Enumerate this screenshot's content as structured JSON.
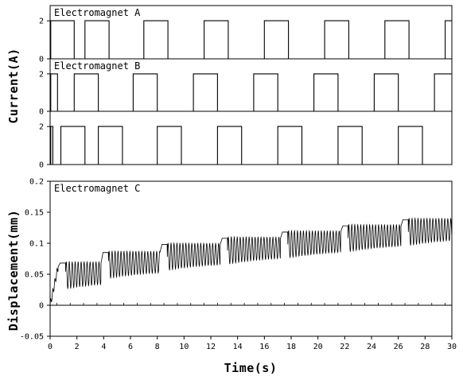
{
  "chart_data": [
    {
      "type": "line",
      "title": "Electromagnet A",
      "ylim": [
        0,
        2.8
      ],
      "yticks": [
        0,
        2
      ],
      "xlim": [
        0,
        30
      ],
      "current_high": 2,
      "pulses": [
        [
          0.05,
          1.8
        ],
        [
          2.6,
          4.4
        ],
        [
          7.0,
          8.8
        ],
        [
          11.5,
          13.3
        ],
        [
          16.0,
          17.8
        ],
        [
          20.5,
          22.3
        ],
        [
          25.0,
          26.8
        ],
        [
          29.5,
          30
        ]
      ],
      "color": "#000000"
    },
    {
      "type": "line",
      "title": "Electromagnet B",
      "ylim": [
        0,
        2.8
      ],
      "yticks": [
        0,
        2
      ],
      "xlim": [
        0,
        30
      ],
      "current_high": 2,
      "pulses": [
        [
          0.05,
          0.55
        ],
        [
          1.8,
          3.6
        ],
        [
          6.2,
          8.0
        ],
        [
          10.7,
          12.5
        ],
        [
          15.2,
          17.0
        ],
        [
          19.7,
          21.5
        ],
        [
          24.2,
          26.0
        ],
        [
          28.7,
          30
        ]
      ],
      "color": "#000000"
    },
    {
      "type": "line",
      "title": "",
      "ylim": [
        0,
        2.8
      ],
      "yticks": [
        0,
        2
      ],
      "xlim": [
        0,
        30
      ],
      "current_high": 2,
      "pulses": [
        [
          0.05,
          0.2
        ],
        [
          0.8,
          2.6
        ],
        [
          3.6,
          5.4
        ],
        [
          8.0,
          9.8
        ],
        [
          12.5,
          14.3
        ],
        [
          17.0,
          18.8
        ],
        [
          21.5,
          23.3
        ],
        [
          26.0,
          27.8
        ]
      ],
      "color": "#000000"
    },
    {
      "type": "line",
      "title": "Electromagnet C",
      "ylim": [
        -0.05,
        0.2
      ],
      "yticks": [
        -0.05,
        0,
        0.05,
        0.1,
        0.15,
        0.2
      ],
      "ytick_labels": [
        "-0.05",
        "0",
        "0.05",
        "0.1",
        "0.15",
        "0.2"
      ],
      "xlim": [
        0,
        30
      ],
      "xticks": [
        0,
        2,
        4,
        6,
        8,
        10,
        12,
        14,
        16,
        18,
        20,
        22,
        24,
        26,
        28,
        30
      ],
      "xlabel": "Time(s)",
      "ylabel": "Displacement(mm)",
      "step_times": [
        0.6,
        3.8,
        8.2,
        12.7,
        17.2,
        21.7,
        26.2
      ],
      "step_baselines": [
        0.062,
        0.068,
        0.085,
        0.098,
        0.108,
        0.118,
        0.128,
        0.138
      ],
      "oscillation_amplitude": 0.022,
      "oscillation_frequency_hz": 4.5,
      "minimum_displacement": -0.015,
      "maximum_displacement": 0.148,
      "color": "#000000"
    }
  ],
  "shared_ylabel": "Current(A)"
}
